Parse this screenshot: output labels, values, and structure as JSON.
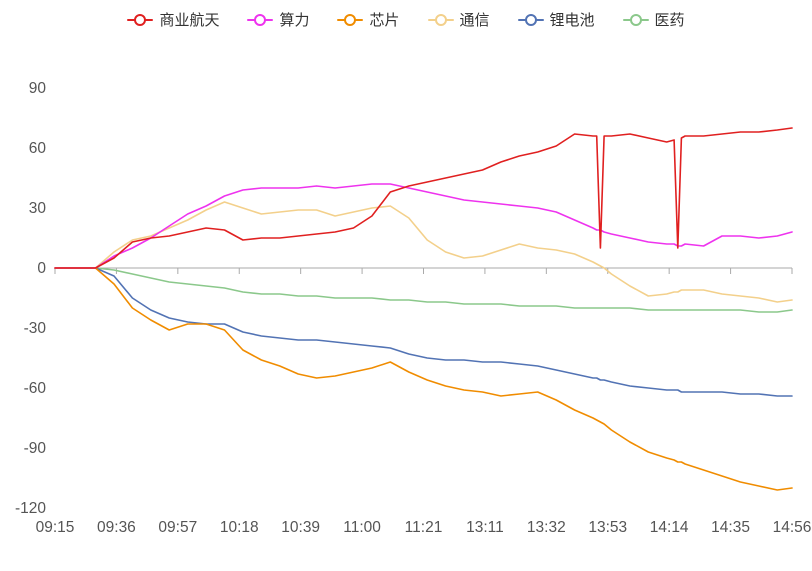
{
  "style": {
    "axis_color": "#aaaaaa",
    "label_color": "#555555",
    "legend_text_color": "#333333",
    "background": "#ffffff"
  },
  "chart_data": {
    "type": "line",
    "title": "",
    "legend_position": "top",
    "grid": false,
    "y_axis": {
      "min": -120,
      "max": 90,
      "ticks": [
        90,
        60,
        30,
        0,
        -30,
        -60,
        -90,
        -120
      ]
    },
    "x_axis": {
      "labels": [
        "09:15",
        "09:36",
        "09:57",
        "10:18",
        "10:39",
        "11:00",
        "11:21",
        "13:11",
        "13:32",
        "13:53",
        "14:14",
        "14:35",
        "14:56"
      ]
    },
    "x": [
      0,
      0.055,
      0.08,
      0.105,
      0.13,
      0.155,
      0.18,
      0.205,
      0.23,
      0.255,
      0.28,
      0.305,
      0.33,
      0.355,
      0.38,
      0.405,
      0.43,
      0.455,
      0.48,
      0.505,
      0.53,
      0.555,
      0.58,
      0.605,
      0.63,
      0.655,
      0.68,
      0.705,
      0.73,
      0.735,
      0.74,
      0.745,
      0.755,
      0.78,
      0.805,
      0.83,
      0.84,
      0.845,
      0.85,
      0.855,
      0.88,
      0.905,
      0.93,
      0.955,
      0.98,
      1.0
    ],
    "series": [
      {
        "id": "commercial-aerospace",
        "name": "商业航天",
        "color": "#e02020",
        "values": [
          0,
          0,
          5,
          13,
          15,
          16,
          18,
          20,
          19,
          14,
          15,
          15,
          16,
          17,
          18,
          20,
          26,
          38,
          41,
          43,
          45,
          47,
          49,
          53,
          56,
          58,
          61,
          67,
          66,
          66,
          10,
          66,
          66,
          67,
          65,
          63,
          64,
          10,
          65,
          66,
          66,
          67,
          68,
          68,
          69,
          70
        ]
      },
      {
        "id": "computing-power",
        "name": "算力",
        "color": "#ee33ee",
        "values": [
          0,
          0,
          6,
          10,
          15,
          21,
          27,
          31,
          36,
          39,
          40,
          40,
          40,
          41,
          40,
          41,
          42,
          42,
          40,
          38,
          36,
          34,
          33,
          32,
          31,
          30,
          28,
          24,
          20,
          19,
          19,
          18,
          17,
          15,
          13,
          12,
          12,
          11,
          11,
          12,
          11,
          16,
          16,
          15,
          16,
          18
        ]
      },
      {
        "id": "chips",
        "name": "芯片",
        "color": "#f08c00",
        "values": [
          0,
          0,
          -8,
          -20,
          -26,
          -31,
          -28,
          -28,
          -31,
          -41,
          -46,
          -49,
          -53,
          -55,
          -54,
          -52,
          -50,
          -47,
          -52,
          -56,
          -59,
          -61,
          -62,
          -64,
          -63,
          -62,
          -66,
          -71,
          -75,
          -76,
          -77,
          -78,
          -81,
          -87,
          -92,
          -95,
          -96,
          -97,
          -97,
          -98,
          -101,
          -104,
          -107,
          -109,
          -111,
          -110
        ]
      },
      {
        "id": "telecom",
        "name": "通信",
        "color": "#f3d08b",
        "values": [
          0,
          0,
          8,
          14,
          16,
          20,
          24,
          29,
          33,
          30,
          27,
          28,
          29,
          29,
          26,
          28,
          30,
          31,
          25,
          14,
          8,
          5,
          6,
          9,
          12,
          10,
          9,
          7,
          3,
          2,
          1,
          0,
          -3,
          -9,
          -14,
          -13,
          -12,
          -12,
          -11,
          -11,
          -11,
          -13,
          -14,
          -15,
          -17,
          -16
        ]
      },
      {
        "id": "lithium-battery",
        "name": "锂电池",
        "color": "#5273b4",
        "values": [
          0,
          0,
          -4,
          -15,
          -21,
          -25,
          -27,
          -28,
          -28,
          -32,
          -34,
          -35,
          -36,
          -36,
          -37,
          -38,
          -39,
          -40,
          -43,
          -45,
          -46,
          -46,
          -47,
          -47,
          -48,
          -49,
          -51,
          -53,
          -55,
          -55,
          -56,
          -56,
          -57,
          -59,
          -60,
          -61,
          -61,
          -61,
          -62,
          -62,
          -62,
          -62,
          -63,
          -63,
          -64,
          -64
        ]
      },
      {
        "id": "pharma",
        "name": "医药",
        "color": "#8bc88b",
        "values": [
          0,
          0,
          -1,
          -3,
          -5,
          -7,
          -8,
          -9,
          -10,
          -12,
          -13,
          -13,
          -14,
          -14,
          -15,
          -15,
          -15,
          -16,
          -16,
          -17,
          -17,
          -18,
          -18,
          -18,
          -19,
          -19,
          -19,
          -20,
          -20,
          -20,
          -20,
          -20,
          -20,
          -20,
          -21,
          -21,
          -21,
          -21,
          -21,
          -21,
          -21,
          -21,
          -21,
          -22,
          -22,
          -21
        ]
      }
    ]
  }
}
